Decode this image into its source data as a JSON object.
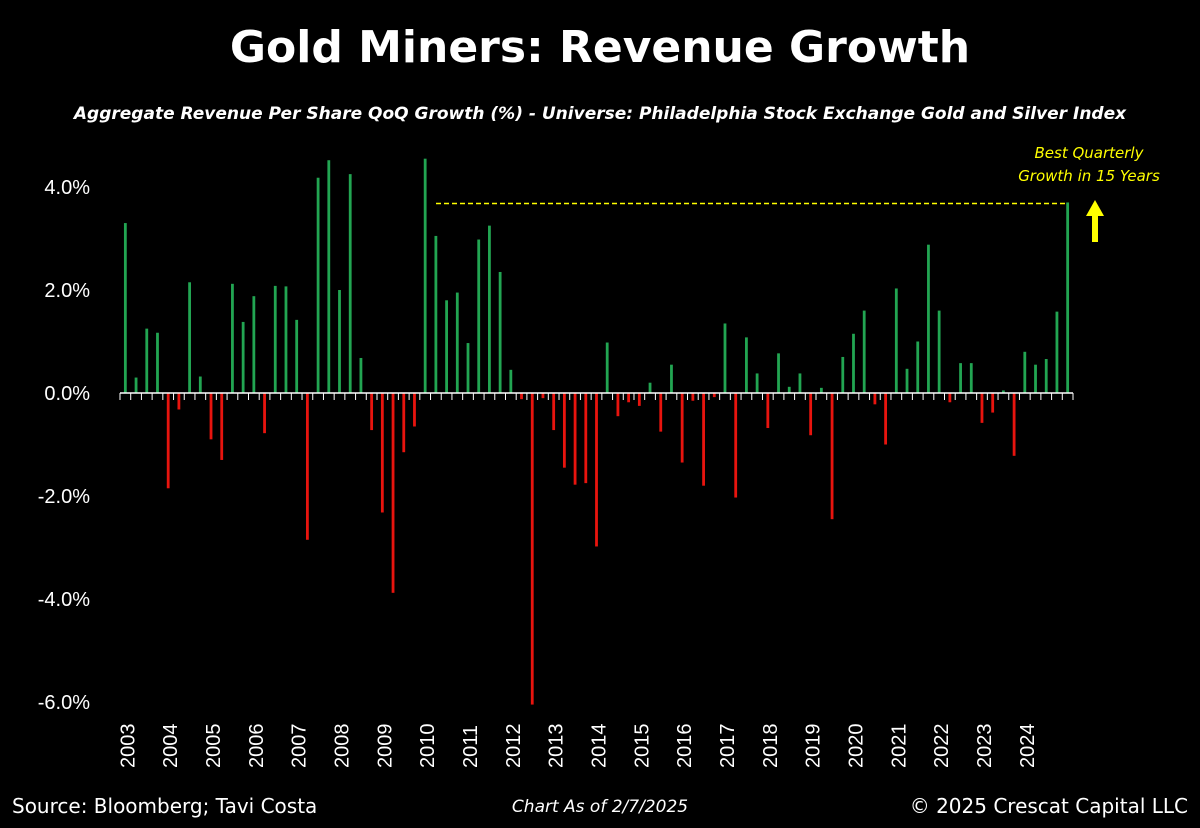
{
  "header": {
    "title": "Gold Miners: Revenue Growth",
    "subtitle": "Aggregate Revenue Per Share QoQ Growth (%) - Universe: Philadelphia Stock Exchange Gold and Silver Index"
  },
  "footer": {
    "source": "Source: Bloomberg; Tavi Costa",
    "date": "Chart As of 2/7/2025",
    "copyright": "© 2025 Crescat Capital LLC"
  },
  "colors": {
    "positive": "#22a552",
    "negative": "#e8140e",
    "annotation": "#ffff00",
    "axis": "#ffffff",
    "background": "#000000"
  },
  "chart_data": {
    "type": "bar",
    "ylim": [
      -6.0,
      4.6
    ],
    "yticks": [
      "4.0%",
      "2.0%",
      "0.0%",
      "-2.0%",
      "-4.0%",
      "-6.0%"
    ],
    "ytick_values": [
      4,
      2,
      0,
      -2,
      -4,
      -6
    ],
    "year_labels": [
      "2003",
      "2004",
      "2005",
      "2006",
      "2007",
      "2008",
      "2009",
      "2010",
      "2011",
      "2012",
      "2013",
      "2014",
      "2015",
      "2016",
      "2017",
      "2018",
      "2019",
      "2020",
      "2021",
      "2022",
      "2023",
      "2024"
    ],
    "values": [
      3.3,
      0.3,
      1.25,
      1.17,
      -1.85,
      -0.32,
      2.15,
      0.32,
      -0.9,
      -1.3,
      2.12,
      1.38,
      1.88,
      -0.78,
      2.08,
      2.07,
      1.42,
      -2.85,
      4.18,
      4.52,
      2.0,
      4.25,
      0.68,
      -0.72,
      -2.32,
      -3.88,
      -1.15,
      -0.65,
      4.55,
      3.05,
      1.8,
      1.95,
      0.97,
      2.98,
      3.25,
      2.35,
      0.45,
      -0.12,
      -6.05,
      -0.1,
      -0.72,
      -1.45,
      -1.78,
      -1.75,
      -2.98,
      0.98,
      -0.45,
      -0.18,
      -0.25,
      0.2,
      -0.75,
      0.55,
      -1.35,
      -0.15,
      -1.8,
      -0.08,
      1.35,
      -2.03,
      1.08,
      0.38,
      -0.68,
      0.77,
      0.12,
      0.38,
      -0.82,
      0.1,
      -2.45,
      0.7,
      1.15,
      1.6,
      -0.22,
      -1.0,
      2.03,
      0.47,
      1.0,
      2.88,
      1.6,
      -0.18,
      0.58,
      0.58,
      -0.58,
      -0.38,
      0.05,
      -1.22,
      0.8,
      0.55,
      0.66,
      1.58,
      3.7
    ],
    "reference_line_value": 3.68,
    "annotation": {
      "line1": "Best Quarterly",
      "line2": "Growth in 15 Years"
    }
  }
}
